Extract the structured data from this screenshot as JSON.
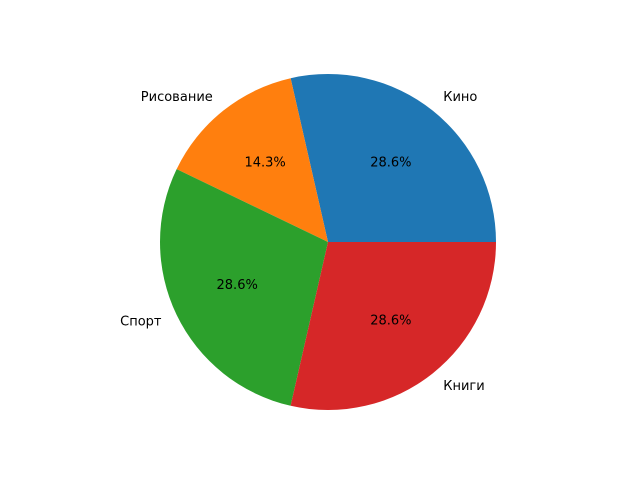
{
  "chart_data": {
    "type": "pie",
    "categories": [
      "Кино",
      "Рисование",
      "Спорт",
      "Книги"
    ],
    "values": [
      2,
      1,
      2,
      2
    ],
    "percent_labels": [
      "28.6%",
      "14.3%",
      "28.6%",
      "28.6%"
    ],
    "colors": [
      "#1f77b4",
      "#ff7f0e",
      "#2ca02c",
      "#d62728"
    ],
    "start_angle_deg": 0,
    "direction": "counterclockwise"
  }
}
